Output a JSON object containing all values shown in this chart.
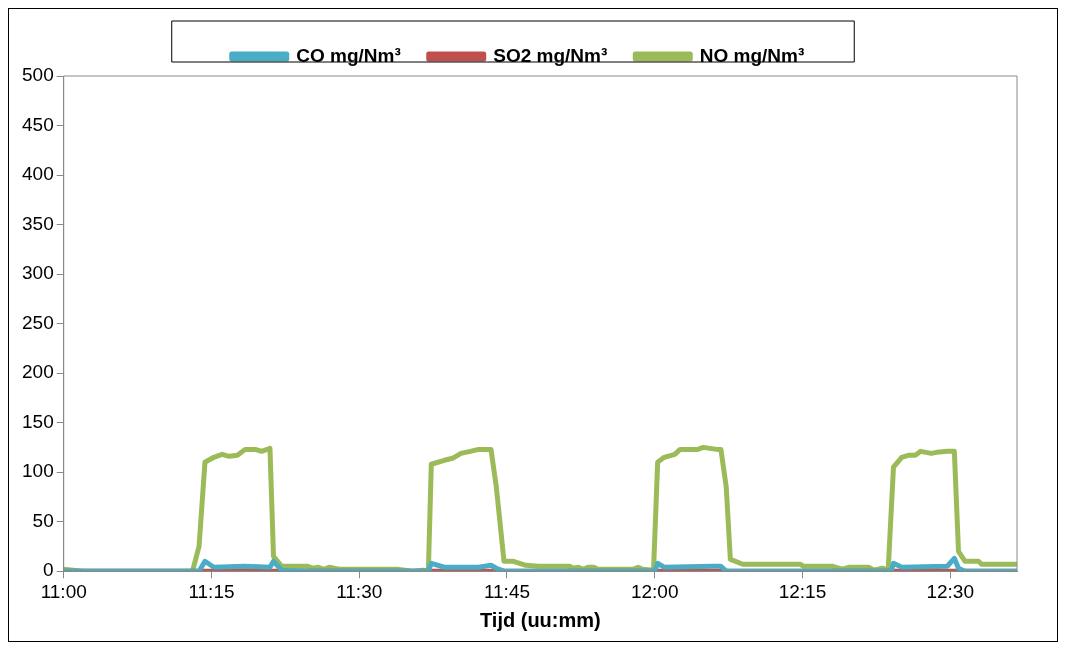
{
  "chart_data": {
    "type": "line",
    "xlabel": "Tijd (uu:mm)",
    "legend": "top",
    "grid": false,
    "marker": "none",
    "line_style": "solid",
    "xlim": [
      11,
      12.613
    ],
    "xticks": [
      {
        "value": 11,
        "label": "11:00"
      },
      {
        "value": 11.25,
        "label": "11:15"
      },
      {
        "value": 11.5,
        "label": "11:30"
      },
      {
        "value": 11.75,
        "label": "11:45"
      },
      {
        "value": 12,
        "label": "12:00"
      },
      {
        "value": 12.25,
        "label": "12:15"
      },
      {
        "value": 12.5,
        "label": "12:30"
      }
    ],
    "ylim": [
      0,
      500
    ],
    "yticks": [
      0,
      50,
      100,
      150,
      200,
      250,
      300,
      350,
      400,
      450,
      500
    ],
    "series": [
      {
        "name": "CO mg/Nm³",
        "color": "#4bacc6",
        "x": [
          11.0,
          11.229,
          11.239,
          11.254,
          11.307,
          11.349,
          11.355,
          11.369,
          11.413,
          11.617,
          11.622,
          11.644,
          11.702,
          11.723,
          11.732,
          11.745,
          12.0,
          12.005,
          12.016,
          12.098,
          12.112,
          12.121,
          12.4,
          12.404,
          12.418,
          12.495,
          12.507,
          12.514,
          12.525,
          12.612
        ],
        "values": [
          0,
          0,
          10,
          4,
          5,
          4,
          10,
          1,
          0,
          0,
          8,
          4,
          4,
          6,
          3,
          0,
          0,
          8,
          4,
          5,
          5,
          0,
          0,
          8,
          4,
          5,
          13,
          3,
          0,
          0
        ]
      },
      {
        "name": "SO2 mg/Nm³",
        "color": "#c0504d",
        "x": [
          11.0,
          12.612
        ],
        "values": [
          0,
          0
        ]
      },
      {
        "name": "NO mg/Nm³",
        "color": "#9bbb59",
        "x": [
          11.0,
          11.032,
          11.218,
          11.229,
          11.239,
          11.254,
          11.268,
          11.28,
          11.294,
          11.307,
          11.324,
          11.335,
          11.349,
          11.355,
          11.369,
          11.413,
          11.422,
          11.431,
          11.44,
          11.449,
          11.466,
          11.564,
          11.59,
          11.608,
          11.617,
          11.622,
          11.644,
          11.658,
          11.672,
          11.688,
          11.702,
          11.723,
          11.732,
          11.745,
          11.761,
          11.782,
          11.803,
          11.856,
          11.862,
          11.871,
          11.879,
          11.887,
          11.897,
          11.904,
          11.963,
          11.972,
          11.98,
          11.998,
          12.005,
          12.016,
          12.034,
          12.043,
          12.073,
          12.082,
          12.105,
          12.112,
          12.121,
          12.128,
          12.149,
          12.229,
          12.246,
          12.252,
          12.3,
          12.317,
          12.33,
          12.362,
          12.371,
          12.385,
          12.395,
          12.404,
          12.418,
          12.429,
          12.441,
          12.45,
          12.468,
          12.477,
          12.495,
          12.507,
          12.514,
          12.525,
          12.548,
          12.553,
          12.612
        ],
        "values": [
          2,
          0,
          0,
          25,
          110,
          115,
          118,
          116,
          117,
          123,
          123,
          121,
          124,
          15,
          5,
          5,
          3,
          4,
          2,
          4,
          2,
          2,
          0,
          1,
          0,
          108,
          112,
          114,
          119,
          121,
          123,
          123,
          85,
          10,
          10,
          6,
          5,
          5,
          3,
          4,
          2,
          4,
          4,
          2,
          2,
          4,
          2,
          1,
          110,
          115,
          118,
          123,
          123,
          125,
          123,
          123,
          85,
          12,
          7,
          7,
          7,
          5,
          5,
          2,
          4,
          4,
          1,
          3,
          1,
          105,
          115,
          117,
          117,
          121,
          119,
          120,
          121,
          121,
          20,
          10,
          10,
          7,
          7
        ]
      }
    ]
  }
}
